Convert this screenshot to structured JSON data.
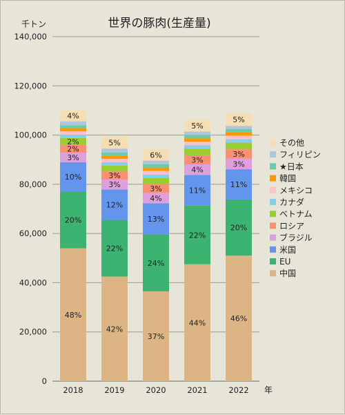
{
  "chart_data": {
    "type": "bar",
    "stacked": true,
    "title": "世界の豚肉(生産量)",
    "ylabel": "千トン",
    "xlabel": "年",
    "ylim": [
      0,
      140000
    ],
    "yticks": [
      0,
      20000,
      40000,
      60000,
      80000,
      100000,
      120000,
      140000
    ],
    "ytick_labels": [
      "0",
      "20,000",
      "40,000",
      "60,000",
      "80,000",
      "100,000",
      "120,000",
      "140,000"
    ],
    "grid": true,
    "legend_position": "right",
    "categories": [
      "2018",
      "2019",
      "2020",
      "2021",
      "2022"
    ],
    "series": [
      {
        "name": "中国",
        "color": "#ddb584",
        "values": [
          54000,
          42500,
          36500,
          47500,
          51000
        ],
        "labels": [
          "48%",
          "42%",
          "37%",
          "44%",
          "46%"
        ]
      },
      {
        "name": "EU",
        "color": "#3cb371",
        "values": [
          23000,
          23000,
          23000,
          23800,
          22800
        ],
        "labels": [
          "20%",
          "22%",
          "24%",
          "22%",
          "20%"
        ]
      },
      {
        "name": "米国",
        "color": "#6495ed",
        "values": [
          12000,
          12400,
          12800,
          12500,
          12300
        ],
        "labels": [
          "10%",
          "12%",
          "13%",
          "11%",
          "11%"
        ]
      },
      {
        "name": "ブラジル",
        "color": "#dda0dd",
        "values": [
          3800,
          4000,
          4200,
          4300,
          4300
        ],
        "labels": [
          "3%",
          "3%",
          "4%",
          "4%",
          "3%"
        ]
      },
      {
        "name": "ロシア",
        "color": "#fa8f72",
        "values": [
          3200,
          3300,
          3600,
          3700,
          3800
        ],
        "labels": [
          "2%",
          "3%",
          "3%",
          "3%",
          "3%"
        ]
      },
      {
        "name": "ベトナム",
        "color": "#9acd32",
        "values": [
          2800,
          2400,
          2400,
          2600,
          2700
        ],
        "labels": [
          "2%",
          "",
          "",
          "",
          ""
        ]
      },
      {
        "name": "カナダ",
        "color": "#87ceeb",
        "values": [
          1400,
          1400,
          1500,
          1500,
          1400
        ],
        "labels": [
          "",
          "",
          "",
          "",
          ""
        ]
      },
      {
        "name": "メキシコ",
        "color": "#ffc0cb",
        "values": [
          1300,
          1300,
          1400,
          1400,
          1400
        ],
        "labels": [
          "",
          "",
          "",
          "",
          ""
        ]
      },
      {
        "name": "韓国",
        "color": "#ff9800",
        "values": [
          1300,
          1400,
          1400,
          1400,
          1400
        ],
        "labels": [
          "",
          "",
          "",
          "",
          ""
        ]
      },
      {
        "name": "★日本",
        "color": "#66cdaa",
        "values": [
          1200,
          1200,
          1300,
          1300,
          1300
        ],
        "labels": [
          "",
          "",
          "",
          "",
          ""
        ]
      },
      {
        "name": "フィリピン",
        "color": "#b0c4de",
        "values": [
          1600,
          1600,
          1500,
          1400,
          1300
        ],
        "labels": [
          "",
          "",
          "",
          "",
          ""
        ]
      },
      {
        "name": "その他",
        "color": "#f5deb3",
        "values": [
          4600,
          4900,
          4600,
          4700,
          5200
        ],
        "labels": [
          "4%",
          "5%",
          "6%",
          "5%",
          "5%"
        ]
      }
    ]
  }
}
